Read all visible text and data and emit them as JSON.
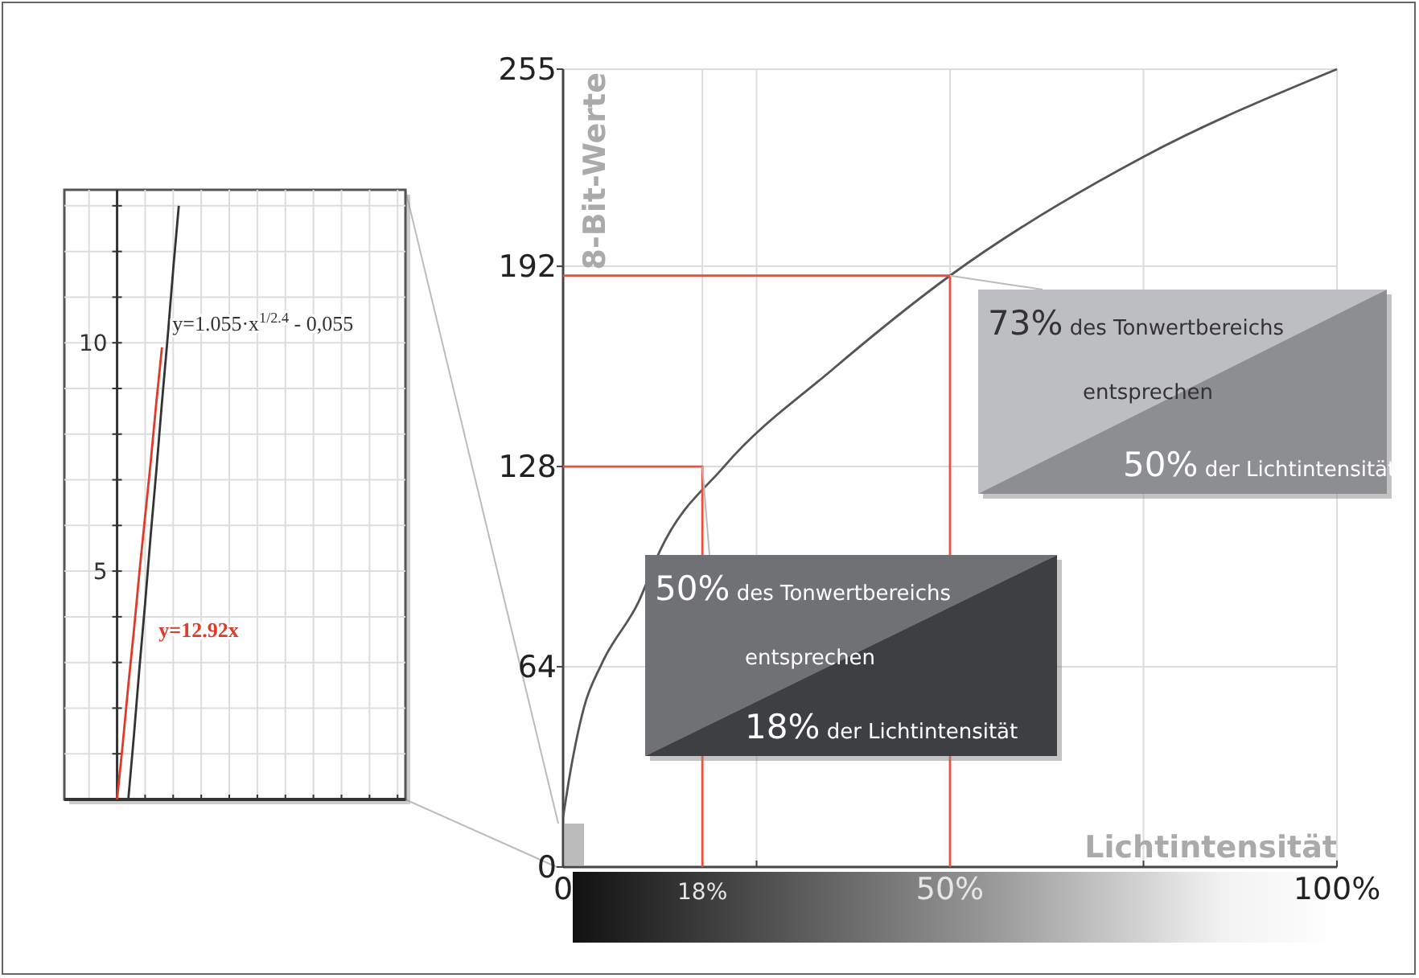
{
  "chart_data": [
    {
      "type": "line",
      "categories": [
        null,
        null,
        null,
        null,
        null,
        null,
        null,
        null,
        null,
        null,
        null,
        null,
        null,
        null,
        null,
        null,
        null,
        null,
        null,
        null,
        null,
        null,
        null,
        null,
        null,
        null,
        null,
        null,
        null,
        null,
        null,
        null,
        null,
        null,
        null,
        null,
        null,
        null,
        null,
        null,
        null,
        null,
        null,
        null,
        null,
        null,
        null,
        null,
        null,
        null,
        null,
        null,
        null,
        null,
        null,
        null,
        null,
        null,
        null,
        null,
        null
      ],
      "ylim": [
        0,
        13.35
      ],
      "yticks": [
        {
          "value": 1,
          "label": null
        },
        {
          "value": 2,
          "label": null
        },
        {
          "value": 3,
          "label": null
        },
        {
          "value": 4,
          "label": null
        },
        5,
        {
          "value": 6,
          "label": null
        },
        {
          "value": 7,
          "label": null
        },
        {
          "value": 8,
          "label": null
        },
        {
          "value": 9,
          "label": null
        },
        10,
        {
          "value": 11,
          "label": null
        },
        {
          "value": 12,
          "label": null
        },
        {
          "value": 13,
          "label": null
        }
      ],
      "grid": true,
      "series": [
        {
          "name": "y=1.055·x$^{1/2.4}$ - 0,055",
          "color": "#333333",
          "values": [
            null,
            null,
            null,
            null,
            null,
            null,
            null,
            null,
            null,
            null,
            null,
            0,
            1.4,
            2.9,
            4.3,
            5.8,
            7.2,
            8.7,
            10.1,
            11.6,
            13.0,
            null,
            null,
            null,
            null,
            null,
            null,
            null,
            null,
            null,
            null,
            null,
            null,
            null,
            null,
            null,
            null,
            null,
            null,
            null,
            null,
            null,
            null,
            null,
            null,
            null,
            null,
            null,
            null,
            null,
            null,
            null,
            null,
            null,
            null,
            null,
            null,
            null,
            null,
            null,
            null
          ]
        },
        {
          "name": "y=12.92x",
          "color": "#e03a2a",
          "values": [
            null,
            null,
            null,
            null,
            null,
            null,
            null,
            null,
            null,
            0,
            1.2,
            2.5,
            3.7,
            5.0,
            6.2,
            7.4,
            8.7,
            9.9,
            null,
            null,
            null,
            null,
            null,
            null,
            null,
            null,
            null,
            null,
            null,
            null,
            null,
            null,
            null,
            null,
            null,
            null,
            null,
            null,
            null,
            null,
            null,
            null,
            null,
            null,
            null,
            null,
            null,
            null,
            null,
            null,
            null,
            null,
            null,
            null,
            null,
            null,
            null,
            null,
            null,
            null,
            null
          ]
        }
      ]
    },
    {
      "type": "line",
      "xlabel": "Lichtintensität",
      "ylabel": "8-Bit-Werte",
      "xlim": [
        0,
        100
      ],
      "ylim": [
        0,
        255
      ],
      "xticks": [
        {
          "value": 0,
          "label": "0"
        },
        {
          "value": 18,
          "label": "18%"
        },
        {
          "value": 25,
          "label": null
        },
        {
          "value": 50,
          "label": "50%"
        },
        {
          "value": 75,
          "label": null
        },
        {
          "value": 100,
          "label": "100%"
        }
      ],
      "yticks": [
        0,
        64,
        128,
        192,
        255
      ],
      "grid": true,
      "x": [
        0,
        0.7,
        2.7,
        5,
        9.8,
        12.5,
        20.8,
        34.8,
        50,
        75,
        100
      ],
      "series": [
        {
          "color": "#555555",
          "values": [
            16,
            27,
            51,
            65,
            85,
            101,
            128,
            159,
            189,
            227,
            255
          ]
        },
        {
          "color": "#e8513f",
          "x": [
            0,
            18,
            18
          ],
          "values": [
            128,
            128,
            0
          ]
        },
        {
          "color": "#e8513f",
          "x": [
            0,
            50,
            50
          ],
          "values": [
            189,
            189,
            0
          ]
        }
      ],
      "annotations": [
        {
          "text": "50% des Tonwertbereichs",
          "x": 18,
          "y": 128
        },
        "entsprechen",
        "18% der Lichtintensität",
        {
          "text": "73% des Tonwertbereichs",
          "x": 50,
          "y": 189
        },
        "entsprechen",
        "50% der Lichtintensität"
      ]
    }
  ]
}
